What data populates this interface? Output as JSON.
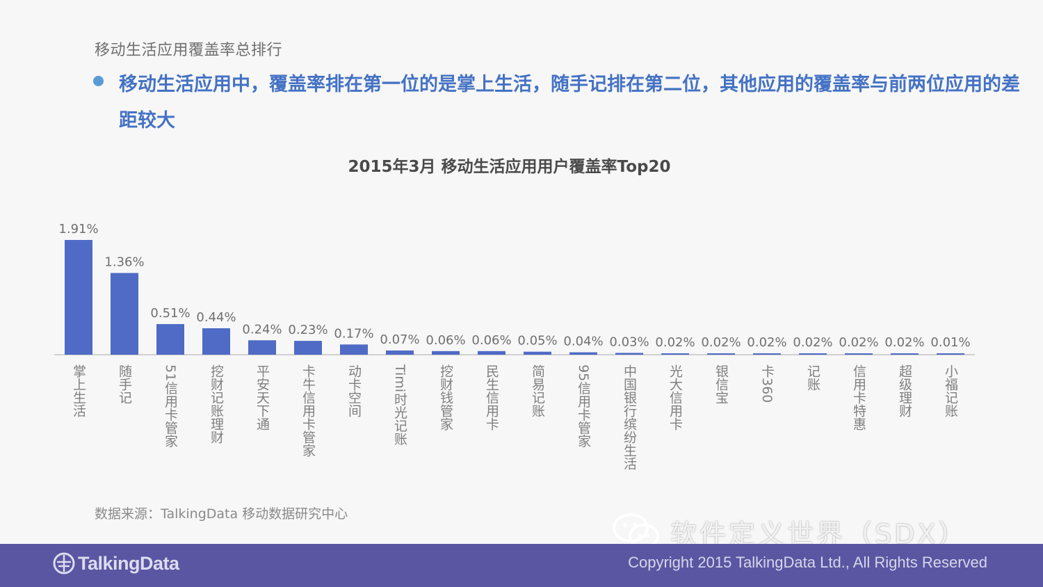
{
  "slide": {
    "section_title": "移动生活应用覆盖率总排行",
    "headline": "移动生活应用中，覆盖率排在第一位的是掌上生活，随手记排在第二位，其他应用的覆盖率与前两位应用的差距较大",
    "source": "数据来源：TalkingData 移动数据研究中心",
    "watermark": "软件定义世界（SDX）",
    "footer_logo": "TalkingData",
    "copyright": "Copyright 2015 TalkingData Ltd., All Rights Reserved"
  },
  "colors": {
    "bar": "#4f6bc6",
    "footer": "#5a56a2",
    "headline": "#4472c4",
    "bullet": "#5b9bd5"
  },
  "chart_data": {
    "type": "bar",
    "title": "2015年3月 移动生活应用用户覆盖率Top20",
    "categories": [
      "掌上生活",
      "随手记",
      "51信用卡管家",
      "挖财记账理财",
      "平安天下通",
      "卡牛信用卡管家",
      "动卡空间",
      "Timi时光记账",
      "挖财钱管家",
      "民生信用卡",
      "简易记账",
      "95信用卡管家",
      "中国银行缤纷生活",
      "光大信用卡",
      "银信宝",
      "卡360",
      "记账",
      "信用卡特惠",
      "超级理财",
      "小福记账"
    ],
    "values": [
      1.91,
      1.36,
      0.51,
      0.44,
      0.24,
      0.23,
      0.17,
      0.07,
      0.06,
      0.06,
      0.05,
      0.04,
      0.03,
      0.02,
      0.02,
      0.02,
      0.02,
      0.02,
      0.02,
      0.01
    ],
    "value_labels": [
      "1.91%",
      "1.36%",
      "0.51%",
      "0.44%",
      "0.24%",
      "0.23%",
      "0.17%",
      "0.07%",
      "0.06%",
      "0.06%",
      "0.05%",
      "0.04%",
      "0.03%",
      "0.02%",
      "0.02%",
      "0.02%",
      "0.02%",
      "0.02%",
      "0.02%",
      "0.01%"
    ],
    "unit": "%",
    "ylim": [
      0,
      1.91
    ],
    "grid": false,
    "legend": "none"
  }
}
